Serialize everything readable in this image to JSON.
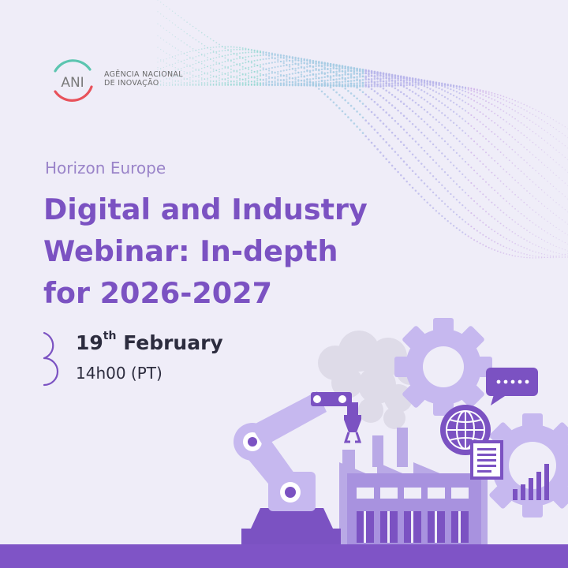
{
  "logo": {
    "mark_text": "ANI",
    "org_name_line1": "AGÊNCIA NACIONAL",
    "org_name_line2": "DE INOVAÇÃO"
  },
  "header": {
    "program": "Horizon Europe",
    "title_lines": [
      "Digital and Industry",
      "Webinar: In-depth",
      "for 2026-2027"
    ]
  },
  "event": {
    "day": "19",
    "day_suffix": "th",
    "month": "February",
    "time": "14h00 (PT)"
  },
  "colors": {
    "background": "#efedf8",
    "accent_purple": "#7b52c2",
    "light_purple": "#b9a9e6",
    "bottom_bar": "#7f54c6",
    "logo_teal": "#5cc5b0",
    "logo_red": "#e8525b"
  },
  "icons": [
    "calendar-arc-icon",
    "gear-icon",
    "chat-bubble-icon",
    "globe-icon",
    "document-icon",
    "bar-chart-icon",
    "robot-arm-icon",
    "factory-icon"
  ]
}
